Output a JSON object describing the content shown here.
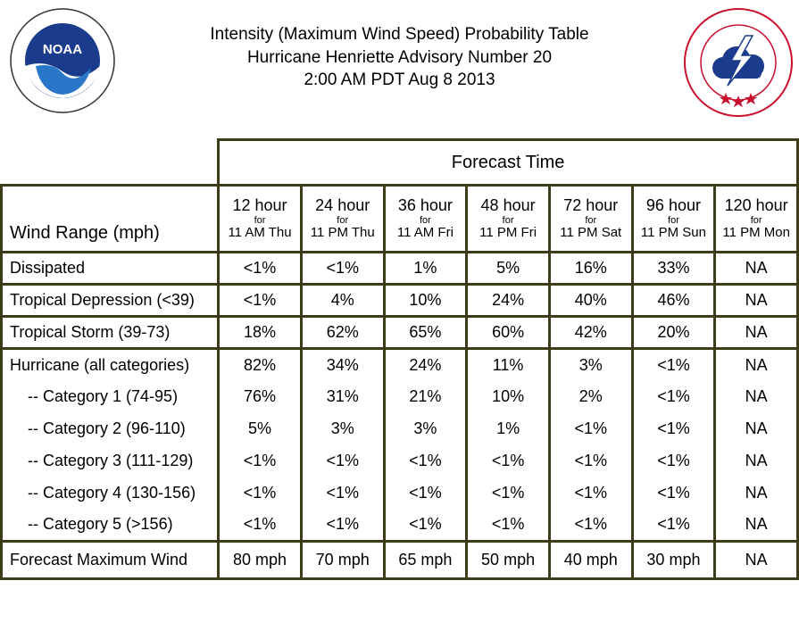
{
  "title": {
    "line1": "Intensity (Maximum Wind Speed) Probability Table",
    "line2": "Hurricane Henriette Advisory Number 20",
    "line3": "2:00 AM PDT Aug 8 2013"
  },
  "logos": {
    "left": {
      "name": "noaa-logo",
      "text": "NOAA",
      "ring_text": "NATIONAL OCEANIC AND ATMOSPHERIC ADMINISTRATION · U.S. DEPARTMENT OF COMMERCE"
    },
    "right": {
      "name": "nws-logo",
      "ring_text": "NATIONAL WEATHER SERVICE"
    }
  },
  "colors": {
    "border": "#3c3c18",
    "noaa_blue": "#1b3c8c",
    "nws_red": "#c8102e"
  },
  "table": {
    "forecast_time_label": "Forecast Time",
    "wind_range_label": "Wind Range (mph)",
    "columns": [
      {
        "hour": "12 hour",
        "for": "for",
        "when": "11 AM Thu"
      },
      {
        "hour": "24 hour",
        "for": "for",
        "when": "11 PM Thu"
      },
      {
        "hour": "36 hour",
        "for": "for",
        "when": "11 AM Fri"
      },
      {
        "hour": "48 hour",
        "for": "for",
        "when": "11 PM Fri"
      },
      {
        "hour": "72 hour",
        "for": "for",
        "when": "11 PM Sat"
      },
      {
        "hour": "96 hour",
        "for": "for",
        "when": "11 PM Sun"
      },
      {
        "hour": "120 hour",
        "for": "for",
        "when": "11 PM Mon"
      }
    ],
    "rows": [
      {
        "label": "Dissipated",
        "values": [
          "<1%",
          "<1%",
          "1%",
          "5%",
          "16%",
          "33%",
          "NA"
        ]
      },
      {
        "label": "Tropical Depression (<39)",
        "values": [
          "<1%",
          "4%",
          "10%",
          "24%",
          "40%",
          "46%",
          "NA"
        ]
      },
      {
        "label": "Tropical Storm (39-73)",
        "values": [
          "18%",
          "62%",
          "65%",
          "60%",
          "42%",
          "20%",
          "NA"
        ]
      }
    ],
    "hurricane_rows": [
      {
        "label": "Hurricane (all categories)",
        "values": [
          "82%",
          "34%",
          "24%",
          "11%",
          "3%",
          "<1%",
          "NA"
        ]
      },
      {
        "label": "-- Category 1 (74-95)",
        "values": [
          "76%",
          "31%",
          "21%",
          "10%",
          "2%",
          "<1%",
          "NA"
        ]
      },
      {
        "label": "-- Category 2 (96-110)",
        "values": [
          "5%",
          "3%",
          "3%",
          "1%",
          "<1%",
          "<1%",
          "NA"
        ]
      },
      {
        "label": "-- Category 3 (111-129)",
        "values": [
          "<1%",
          "<1%",
          "<1%",
          "<1%",
          "<1%",
          "<1%",
          "NA"
        ]
      },
      {
        "label": "-- Category 4 (130-156)",
        "values": [
          "<1%",
          "<1%",
          "<1%",
          "<1%",
          "<1%",
          "<1%",
          "NA"
        ]
      },
      {
        "label": "-- Category 5 (>156)",
        "values": [
          "<1%",
          "<1%",
          "<1%",
          "<1%",
          "<1%",
          "<1%",
          "NA"
        ]
      }
    ],
    "max_wind_row": {
      "label": "Forecast Maximum Wind",
      "values": [
        "80 mph",
        "70 mph",
        "65 mph",
        "50 mph",
        "40 mph",
        "30 mph",
        "NA"
      ]
    }
  }
}
